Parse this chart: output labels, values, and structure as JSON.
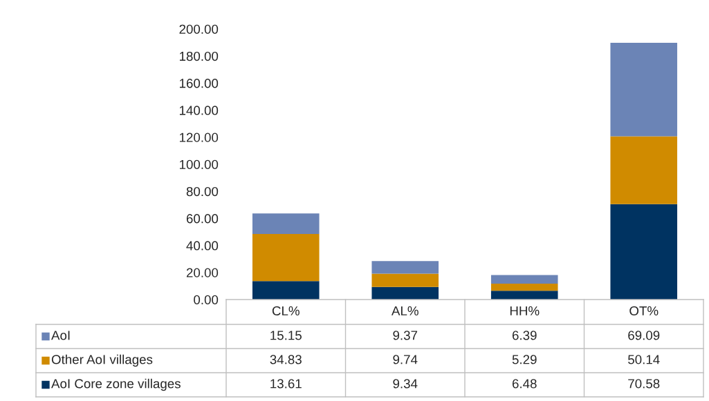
{
  "chart_data": {
    "type": "bar",
    "stacked": true,
    "categories": [
      "CL%",
      "AL%",
      "HH%",
      "OT%"
    ],
    "series": [
      {
        "name": "AoI Core zone villages",
        "color": "#003361",
        "values": [
          13.61,
          9.34,
          6.48,
          70.58
        ]
      },
      {
        "name": "Other AoI villages",
        "color": "#d08b00",
        "values": [
          34.83,
          9.74,
          5.29,
          50.14
        ]
      },
      {
        "name": "AoI",
        "color": "#6b84b6",
        "values": [
          15.15,
          9.37,
          6.39,
          69.09
        ]
      }
    ],
    "ylim": [
      0,
      200
    ],
    "yticks": [
      {
        "value": 0,
        "label": "0.00"
      },
      {
        "value": 20,
        "label": "20.00"
      },
      {
        "value": 40,
        "label": "40.00"
      },
      {
        "value": 60,
        "label": "60.00"
      },
      {
        "value": 80,
        "label": "80.00"
      },
      {
        "value": 100,
        "label": "100.00"
      },
      {
        "value": 120,
        "label": "120.00"
      },
      {
        "value": 140,
        "label": "140.00"
      },
      {
        "value": 160,
        "label": "160.00"
      },
      {
        "value": 180,
        "label": "180.00"
      },
      {
        "value": 200,
        "label": "200.00"
      }
    ],
    "data_labels": true,
    "legend": "bottom",
    "grid": false
  }
}
